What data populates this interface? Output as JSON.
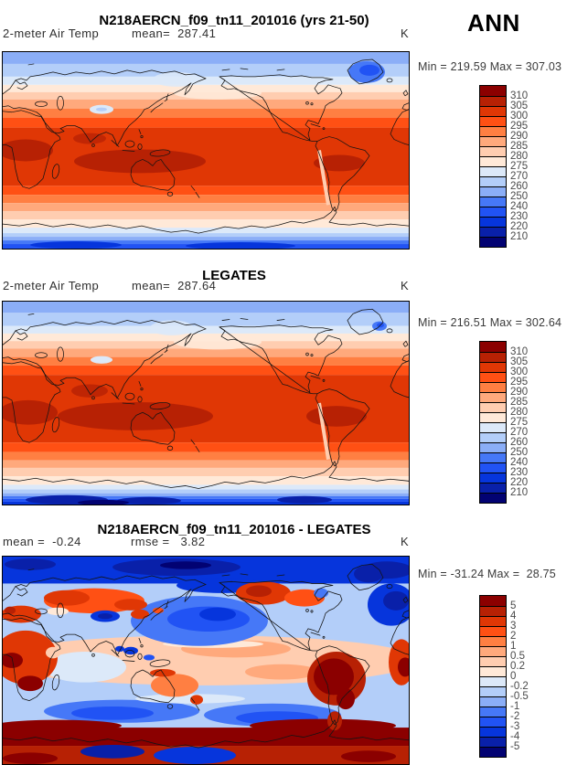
{
  "season": "ANN",
  "palette": [
    "#8B0000",
    "#B72104",
    "#E03705",
    "#FF5014",
    "#FF7F42",
    "#FFA97C",
    "#FFCDB0",
    "#FFE9D8",
    "#DCE9F9",
    "#B3CEF9",
    "#8BAEF7",
    "#4678F7",
    "#2153F4",
    "#0635DC",
    "#0920A9",
    "#020272"
  ],
  "panels": [
    {
      "title": "N218AERCN_f09_tn11_201016 (yrs 21-50)",
      "var_label": "2-meter Air Temp",
      "stats": [
        {
          "text": "mean=  287.41"
        }
      ],
      "units": "K",
      "minmax": "Min = 219.59 Max = 307.03",
      "cbar_labels": [
        "310",
        "305",
        "300",
        "295",
        "290",
        "285",
        "280",
        "275",
        "270",
        "260",
        "250",
        "240",
        "230",
        "220",
        "210"
      ]
    },
    {
      "title": "LEGATES",
      "var_label": "2-meter Air Temp",
      "stats": [
        {
          "text": "mean=  287.64"
        }
      ],
      "units": "K",
      "minmax": "Min = 216.51 Max = 302.64",
      "cbar_labels": [
        "310",
        "305",
        "300",
        "295",
        "290",
        "285",
        "280",
        "275",
        "270",
        "260",
        "250",
        "240",
        "230",
        "220",
        "210"
      ]
    },
    {
      "title": "N218AERCN_f09_tn11_201016 - LEGATES",
      "stats": [
        {
          "text": "mean =  -0.24"
        },
        {
          "text": "rmse =   3.82"
        }
      ],
      "units": "K",
      "minmax": "Min = -31.24 Max =  28.75",
      "cbar_labels": [
        "5",
        "4",
        "3",
        "2",
        "1",
        "0.5",
        "0.2",
        "0",
        "-0.2",
        "-0.5",
        "-1",
        "-2",
        "-3",
        "-4",
        "-5"
      ]
    }
  ],
  "chart_data": [
    {
      "type": "heatmap",
      "title": "N218AERCN_f09_tn11_201016 (yrs 21-50)",
      "subtitle": "2-meter Air Temp",
      "season": "ANN",
      "units": "K",
      "mean": 287.41,
      "min": 219.59,
      "max": 307.03,
      "levels": [
        210,
        220,
        230,
        240,
        250,
        260,
        270,
        275,
        280,
        285,
        290,
        295,
        300,
        305,
        310
      ],
      "projection": "global lat-lon world map, Pacific-centered",
      "legend_position": "right"
    },
    {
      "type": "heatmap",
      "title": "LEGATES",
      "subtitle": "2-meter Air Temp",
      "season": "ANN",
      "units": "K",
      "mean": 287.64,
      "min": 216.51,
      "max": 302.64,
      "levels": [
        210,
        220,
        230,
        240,
        250,
        260,
        270,
        275,
        280,
        285,
        290,
        295,
        300,
        305,
        310
      ],
      "projection": "global lat-lon world map, Pacific-centered",
      "legend_position": "right"
    },
    {
      "type": "heatmap",
      "title": "N218AERCN_f09_tn11_201016 - LEGATES",
      "subtitle": "difference map",
      "season": "ANN",
      "units": "K",
      "mean": -0.24,
      "rmse": 3.82,
      "min": -31.24,
      "max": 28.75,
      "levels": [
        -5,
        -4,
        -3,
        -2,
        -1,
        -0.5,
        -0.2,
        0,
        0.2,
        0.5,
        1,
        2,
        3,
        4,
        5
      ],
      "projection": "global lat-lon world map, Pacific-centered",
      "legend_position": "right"
    }
  ]
}
